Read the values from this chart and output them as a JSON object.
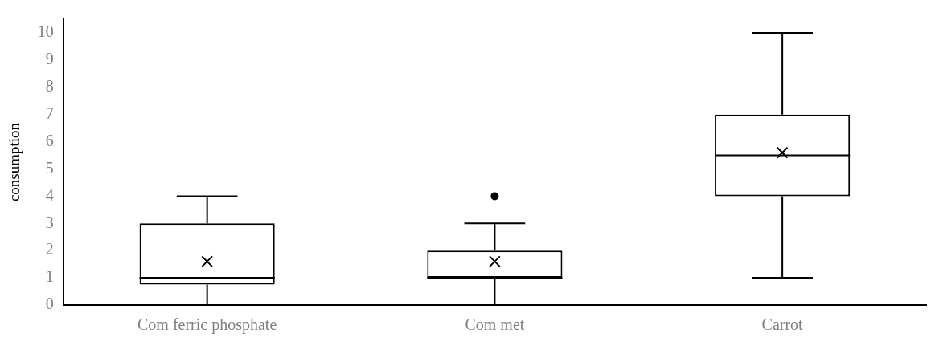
{
  "chart_data": {
    "type": "box",
    "ylabel": "consumption",
    "categories": [
      "Com ferric phosphate",
      "Com met",
      "Carrot"
    ],
    "boxes": [
      {
        "low": 0,
        "q1": 0.75,
        "median": 1,
        "q3": 3,
        "high": 4,
        "mean": 1.6
      },
      {
        "low": 0,
        "q1": 1,
        "median": 1,
        "q3": 2,
        "high": 3,
        "mean": 1.6,
        "outliers": [
          4
        ]
      },
      {
        "low": 1,
        "q1": 4,
        "median": 5.5,
        "q3": 7,
        "high": 10,
        "mean": 5.6
      }
    ],
    "ylim": [
      0,
      10.5
    ],
    "yticks": [
      0,
      1,
      2,
      3,
      4,
      5,
      6,
      7,
      8,
      9,
      10
    ],
    "grid": false,
    "legend": false
  }
}
